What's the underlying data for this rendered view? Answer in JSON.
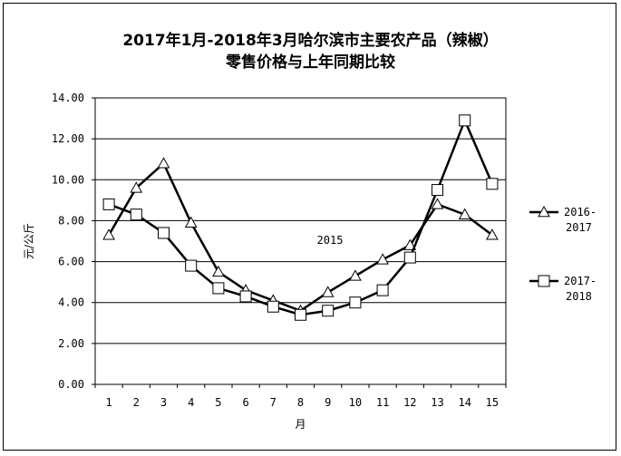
{
  "chart_data": {
    "type": "line",
    "title_line1": "2017年1月-2018年3月哈尔滨市主要农产品（辣椒）",
    "title_line2": "零售价格与上年同期比较",
    "xlabel": "月",
    "ylabel": "元/公斤",
    "annotation": "2015",
    "x": [
      1,
      2,
      3,
      4,
      5,
      6,
      7,
      8,
      9,
      10,
      11,
      12,
      13,
      14,
      15
    ],
    "ylim": [
      0,
      14
    ],
    "yticks": [
      "0.00",
      "2.00",
      "4.00",
      "6.00",
      "8.00",
      "10.00",
      "12.00",
      "14.00"
    ],
    "grid": true,
    "legend_position": "right",
    "series": [
      {
        "name_line1": "2016-",
        "name_line2": "2017",
        "marker": "triangle",
        "values": [
          7.3,
          9.6,
          10.8,
          7.9,
          5.5,
          4.6,
          4.1,
          3.6,
          4.5,
          5.3,
          6.1,
          6.8,
          8.8,
          8.3,
          7.3
        ]
      },
      {
        "name_line1": "2017-",
        "name_line2": "2018",
        "marker": "square",
        "values": [
          8.8,
          8.3,
          7.4,
          5.8,
          4.7,
          4.3,
          3.8,
          3.4,
          3.6,
          4.0,
          4.6,
          6.2,
          9.5,
          12.9,
          9.8
        ]
      }
    ]
  }
}
